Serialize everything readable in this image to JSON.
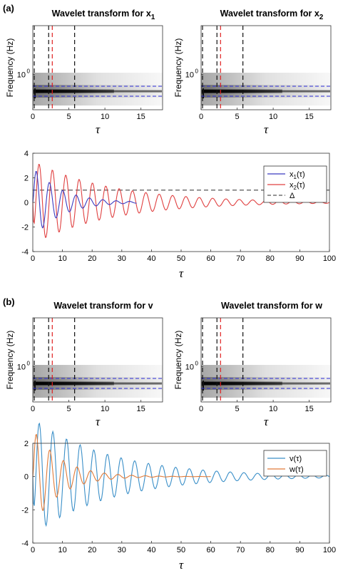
{
  "panel_labels": [
    "(a)",
    "(b)"
  ],
  "chart_data": [
    {
      "type": "heatmap",
      "panel": "a",
      "title": "Wavelet transform for x",
      "title_subscript": "1",
      "xlabel": "τ",
      "ylabel": "Frequency (Hz)",
      "xlim": [
        0,
        18
      ],
      "yscale": "log",
      "xticks": [
        0,
        5,
        10,
        15
      ],
      "ytick_label": "10",
      "ytick_exponent": "0",
      "vlines_black": [
        0.2,
        2.2,
        5.8
      ],
      "vlines_red": [
        2.7
      ],
      "hlines_blue_dashed": 2,
      "intensity_band": "dark horizontal band near 0.7 Hz, strongest for τ < 10"
    },
    {
      "type": "heatmap",
      "panel": "a",
      "title": "Wavelet transform for x",
      "title_subscript": "2",
      "xlabel": "τ",
      "ylabel": "Frequency (Hz)",
      "xlim": [
        0,
        18
      ],
      "yscale": "log",
      "xticks": [
        0,
        5,
        10,
        15
      ],
      "ytick_label": "10",
      "ytick_exponent": "0",
      "vlines_black": [
        0.2,
        2.2,
        5.8
      ],
      "vlines_red": [
        2.7
      ],
      "hlines_blue_dashed": 2
    },
    {
      "type": "line",
      "panel": "a",
      "xlabel": "τ",
      "xlim": [
        0,
        100
      ],
      "ylim": [
        -4,
        4
      ],
      "xticks": [
        0,
        10,
        20,
        30,
        40,
        50,
        60,
        70,
        80,
        90,
        100
      ],
      "yticks": [
        -4,
        -2,
        0,
        2,
        4
      ],
      "legend_position": "right",
      "legend": [
        {
          "label": "x",
          "sub": "1",
          "arg": "(τ)",
          "color": "#3b3bc0",
          "style": "solid"
        },
        {
          "label": "x",
          "sub": "2",
          "arg": "(τ)",
          "color": "#e04040",
          "style": "solid"
        },
        {
          "label": "Δ",
          "sub": "",
          "arg": "",
          "color": "#555555",
          "style": "dashed"
        }
      ],
      "series": [
        {
          "name": "x1(τ)",
          "color": "#3b3bc0",
          "amplitude": 3.0,
          "decay": 0.11,
          "period": 4.5,
          "phase": 0.0,
          "tmax": 35
        },
        {
          "name": "x2(τ)",
          "color": "#e04040",
          "amplitude": 3.4,
          "decay": 0.038,
          "period": 4.5,
          "phase": -1.4,
          "tmax": 100
        }
      ],
      "reference_line": {
        "name": "Δ",
        "y": 1.0,
        "color": "#555555"
      }
    },
    {
      "type": "heatmap",
      "panel": "b",
      "title": "Wavelet transform for v",
      "xlabel": "τ",
      "ylabel": "Frequency (Hz)",
      "xlim": [
        0,
        18
      ],
      "yscale": "log",
      "xticks": [
        0,
        5,
        10,
        15
      ],
      "ytick_label": "10",
      "ytick_exponent": "0",
      "vlines_black": [
        0.2,
        2.2,
        5.8
      ],
      "vlines_red": [
        2.7
      ],
      "hlines_blue_dashed": 2
    },
    {
      "type": "heatmap",
      "panel": "b",
      "title": "Wavelet transform for w",
      "xlabel": "τ",
      "ylabel": "Frequency (Hz)",
      "xlim": [
        0,
        18
      ],
      "yscale": "log",
      "xticks": [
        0,
        5,
        10,
        15
      ],
      "ytick_label": "10",
      "ytick_exponent": "0",
      "vlines_black": [
        0.2,
        2.2,
        5.8
      ],
      "vlines_red": [
        2.7
      ],
      "hlines_blue_dashed": 2
    },
    {
      "type": "line",
      "panel": "b",
      "xlabel": "τ",
      "xlim": [
        0,
        100
      ],
      "ylim": [
        -4,
        2
      ],
      "xticks": [
        0,
        10,
        20,
        30,
        40,
        50,
        60,
        70,
        80,
        90,
        100
      ],
      "yticks": [
        -4,
        -2,
        0,
        2
      ],
      "legend_position": "top-right",
      "legend": [
        {
          "label": "v",
          "sub": "",
          "arg": "(τ)",
          "color": "#3a8fc8",
          "style": "solid"
        },
        {
          "label": "w",
          "sub": "",
          "arg": "(τ)",
          "color": "#e07b39",
          "style": "solid"
        }
      ],
      "series": [
        {
          "name": "v(τ)",
          "color": "#3a8fc8",
          "amplitude": 3.5,
          "decay": 0.038,
          "period": 4.6,
          "phase": -1.4,
          "tmax": 100
        },
        {
          "name": "w(τ)",
          "color": "#e07b39",
          "amplitude": 3.0,
          "decay": 0.11,
          "period": 4.6,
          "phase": 0.0,
          "tmax": 60
        }
      ]
    }
  ]
}
